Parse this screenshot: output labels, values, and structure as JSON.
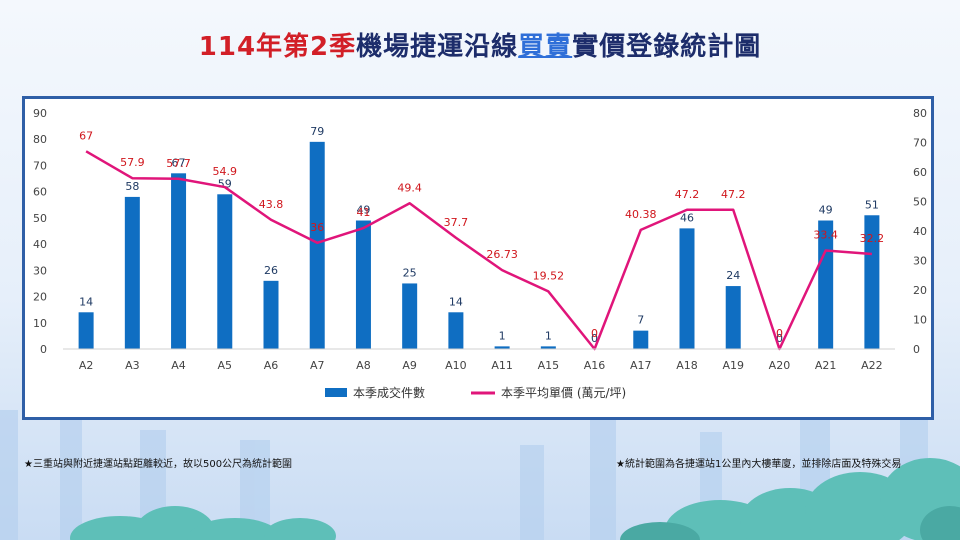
{
  "title": {
    "part_red": "114年第2季",
    "part_navy1": "機場捷運沿線",
    "part_blue": "買賣",
    "part_navy2": "實價登錄統計圖"
  },
  "notes": {
    "left": "★三重站與附近捷運站點距離較近，故以500公尺為統計範圍",
    "right": "★統計範圍為各捷運站1公里內大樓華廈，並排除店面及特殊交易"
  },
  "colors": {
    "bar": "#0f6ec2",
    "line": "#e0157a",
    "bar_label": "#1f3a63",
    "line_label": "#d0161c"
  },
  "chart_data": {
    "type": "bar",
    "categories": [
      "A2",
      "A3",
      "A4",
      "A5",
      "A6",
      "A7",
      "A8",
      "A9",
      "A10",
      "A11",
      "A15",
      "A16",
      "A17",
      "A18",
      "A19",
      "A20",
      "A21",
      "A22"
    ],
    "series": [
      {
        "name": "本季成交件數",
        "type": "bar",
        "axis": "left",
        "values": [
          14,
          58,
          67,
          59,
          26,
          79,
          49,
          25,
          14,
          1,
          1,
          0,
          7,
          46,
          24,
          0,
          49,
          51
        ],
        "labels": [
          "14",
          "58",
          "67",
          "59",
          "26",
          "79",
          "49",
          "25",
          "14",
          "1",
          "1",
          "0",
          "7",
          "46",
          "24",
          "0",
          "49",
          "51"
        ]
      },
      {
        "name": "本季平均單價 (萬元/坪)",
        "type": "line",
        "axis": "right",
        "values": [
          67,
          57.9,
          57.7,
          54.9,
          43.8,
          36,
          41,
          49.4,
          37.7,
          26.73,
          19.52,
          0,
          40.38,
          47.2,
          47.2,
          0,
          33.4,
          32.2
        ],
        "labels": [
          "67",
          "57.9",
          "57.7",
          "54.9",
          "43.8",
          "36",
          "41",
          "49.4",
          "37.7",
          "26.73",
          "19.52",
          "0",
          "40.38",
          "47.2",
          "47.2",
          "0",
          "33.4",
          "32.2"
        ]
      }
    ],
    "y_left": {
      "min": 0,
      "max": 90,
      "ticks": [
        "0",
        "10",
        "20",
        "30",
        "40",
        "50",
        "60",
        "70",
        "80",
        "90"
      ]
    },
    "y_right": {
      "min": 0,
      "max": 80,
      "ticks": [
        "0",
        "10",
        "20",
        "30",
        "40",
        "50",
        "60",
        "70",
        "80"
      ]
    },
    "grid": false,
    "legend_position": "bottom"
  }
}
